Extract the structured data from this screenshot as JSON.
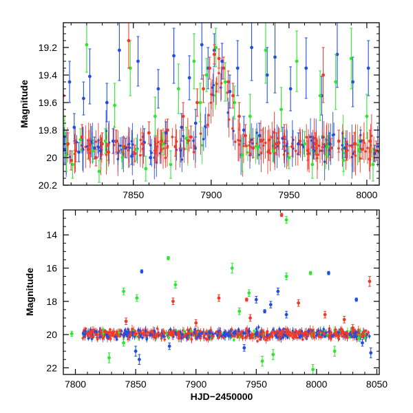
{
  "figure": {
    "background": "#ffffff"
  },
  "chart_data": [
    {
      "type": "scatter",
      "panel": "top",
      "title": "",
      "xlabel": "",
      "ylabel": "Magnitude",
      "xlim": [
        7805,
        8008
      ],
      "ylim": [
        20.2,
        19.02
      ],
      "y_inverted": true,
      "x_ticks": [
        7850,
        7900,
        7950,
        8000
      ],
      "x_tick_labels": [
        "7850",
        "7900",
        "7950",
        "8000"
      ],
      "y_ticks": [
        19.2,
        19.4,
        19.6,
        19.8,
        20,
        20.2
      ],
      "y_tick_labels": [
        "19.2",
        "19.4",
        "19.6",
        "19.8",
        "20",
        "20.2"
      ],
      "series_colors": [
        "#1f4fe0",
        "#2ee62e",
        "#f03a2a"
      ],
      "series": [
        {
          "color": "#1f4fe0",
          "points": [
            [
              7806,
              19.94,
              0.1
            ],
            [
              7809,
              19.45,
              0.15
            ],
            [
              7812,
              19.78,
              0.1
            ],
            [
              7815,
              19.96,
              0.07
            ],
            [
              7818,
              19.57,
              0.12
            ],
            [
              7822,
              19.41,
              0.2
            ],
            [
              7825,
              19.93,
              0.08
            ],
            [
              7829,
              19.95,
              0.06
            ],
            [
              7833,
              19.6,
              0.14
            ],
            [
              7837,
              19.88,
              0.09
            ],
            [
              7841,
              19.22,
              0.22
            ],
            [
              7845,
              19.93,
              0.07
            ],
            [
              7849,
              19.99,
              0.06
            ],
            [
              7853,
              19.3,
              0.18
            ],
            [
              7857,
              19.89,
              0.1
            ],
            [
              7861,
              20.0,
              0.05
            ],
            [
              7866,
              19.5,
              0.14
            ],
            [
              7871,
              19.82,
              0.08
            ],
            [
              7876,
              19.26,
              0.2
            ],
            [
              7881,
              19.78,
              0.1
            ],
            [
              7886,
              19.42,
              0.16
            ],
            [
              7890,
              19.75,
              0.1
            ],
            [
              7894,
              19.18,
              0.25
            ],
            [
              7898,
              19.35,
              0.15
            ],
            [
              7902,
              19.22,
              0.12
            ],
            [
              7907,
              19.3,
              0.13
            ],
            [
              7912,
              19.52,
              0.12
            ],
            [
              7917,
              19.35,
              0.2
            ],
            [
              7921,
              19.8,
              0.1
            ],
            [
              7926,
              19.2,
              0.24
            ],
            [
              7931,
              19.84,
              0.09
            ],
            [
              7936,
              19.4,
              0.2
            ],
            [
              7941,
              19.27,
              0.26
            ],
            [
              7946,
              19.86,
              0.08
            ],
            [
              7951,
              19.5,
              0.16
            ],
            [
              7956,
              19.9,
              0.08
            ],
            [
              7961,
              19.35,
              0.22
            ],
            [
              7966,
              19.95,
              0.06
            ],
            [
              7971,
              19.55,
              0.14
            ],
            [
              7976,
              19.9,
              0.08
            ],
            [
              7981,
              19.25,
              0.24
            ],
            [
              7986,
              19.93,
              0.07
            ],
            [
              7991,
              19.45,
              0.18
            ],
            [
              7996,
              19.88,
              0.08
            ],
            [
              8001,
              19.35,
              0.2
            ],
            [
              8005,
              19.97,
              0.06
            ]
          ]
        },
        {
          "color": "#2ee62e",
          "points": [
            [
              7807,
              19.98,
              0.12
            ],
            [
              7811,
              20.05,
              0.1
            ],
            [
              7816,
              19.87,
              0.08
            ],
            [
              7820,
              19.18,
              0.2
            ],
            [
              7824,
              19.95,
              0.08
            ],
            [
              7828,
              20.1,
              0.08
            ],
            [
              7832,
              19.88,
              0.09
            ],
            [
              7838,
              19.62,
              0.16
            ],
            [
              7843,
              20.0,
              0.08
            ],
            [
              7848,
              19.35,
              0.2
            ],
            [
              7852,
              19.94,
              0.08
            ],
            [
              7858,
              20.08,
              0.09
            ],
            [
              7864,
              19.7,
              0.14
            ],
            [
              7869,
              19.9,
              0.08
            ],
            [
              7874,
              20.05,
              0.1
            ],
            [
              7879,
              19.5,
              0.18
            ],
            [
              7884,
              19.86,
              0.08
            ],
            [
              7889,
              19.3,
              0.2
            ],
            [
              7893,
              19.6,
              0.14
            ],
            [
              7897,
              19.4,
              0.12
            ],
            [
              7903,
              19.2,
              0.14
            ],
            [
              7909,
              19.45,
              0.14
            ],
            [
              7915,
              19.6,
              0.12
            ],
            [
              7920,
              19.98,
              0.12
            ],
            [
              7925,
              19.7,
              0.16
            ],
            [
              7930,
              19.93,
              0.08
            ],
            [
              7935,
              19.22,
              0.24
            ],
            [
              7940,
              19.95,
              0.08
            ],
            [
              7945,
              19.65,
              0.16
            ],
            [
              7950,
              20.0,
              0.08
            ],
            [
              7955,
              19.3,
              0.22
            ],
            [
              7960,
              19.9,
              0.09
            ],
            [
              7965,
              20.05,
              0.1
            ],
            [
              7970,
              19.55,
              0.18
            ],
            [
              7975,
              19.92,
              0.08
            ],
            [
              7980,
              19.45,
              0.2
            ],
            [
              7985,
              20.02,
              0.08
            ],
            [
              7990,
              19.28,
              0.22
            ],
            [
              7995,
              19.95,
              0.08
            ],
            [
              8000,
              19.7,
              0.16
            ],
            [
              8004,
              20.05,
              0.12
            ]
          ]
        },
        {
          "color": "#f03a2a",
          "points": [
            [
              7805,
              19.55,
              0.18
            ],
            [
              7808,
              19.9,
              0.08
            ],
            [
              7810,
              20.02,
              0.07
            ],
            [
              7813,
              19.95,
              0.08
            ],
            [
              7817,
              19.85,
              0.09
            ],
            [
              7821,
              19.94,
              0.07
            ],
            [
              7826,
              20.0,
              0.06
            ],
            [
              7830,
              19.9,
              0.08
            ],
            [
              7834,
              19.96,
              0.06
            ],
            [
              7839,
              19.88,
              0.08
            ],
            [
              7844,
              19.92,
              0.07
            ],
            [
              7847,
              19.15,
              0.2
            ],
            [
              7851,
              19.97,
              0.06
            ],
            [
              7856,
              19.9,
              0.08
            ],
            [
              7860,
              19.82,
              0.08
            ],
            [
              7864,
              19.95,
              0.07
            ],
            [
              7868,
              19.88,
              0.08
            ],
            [
              7872,
              19.8,
              0.08
            ],
            [
              7877,
              19.92,
              0.07
            ],
            [
              7882,
              19.7,
              0.1
            ],
            [
              7887,
              19.85,
              0.08
            ],
            [
              7891,
              19.6,
              0.1
            ],
            [
              7895,
              19.5,
              0.1
            ],
            [
              7899,
              19.35,
              0.08
            ],
            [
              7902,
              19.25,
              0.07
            ],
            [
              7905,
              19.28,
              0.07
            ],
            [
              7908,
              19.35,
              0.08
            ],
            [
              7911,
              19.45,
              0.08
            ],
            [
              7914,
              19.55,
              0.09
            ],
            [
              7918,
              19.7,
              0.1
            ],
            [
              7922,
              19.84,
              0.08
            ],
            [
              7927,
              19.93,
              0.07
            ],
            [
              7932,
              19.88,
              0.08
            ],
            [
              7937,
              19.95,
              0.07
            ],
            [
              7942,
              19.9,
              0.08
            ],
            [
              7947,
              19.85,
              0.09
            ],
            [
              7952,
              19.92,
              0.07
            ],
            [
              7957,
              19.88,
              0.08
            ],
            [
              7962,
              19.95,
              0.07
            ],
            [
              7967,
              19.9,
              0.08
            ],
            [
              7972,
              19.4,
              0.2
            ],
            [
              7977,
              19.93,
              0.07
            ],
            [
              7982,
              19.88,
              0.08
            ],
            [
              7987,
              19.95,
              0.07
            ],
            [
              7992,
              19.9,
              0.08
            ],
            [
              7997,
              19.94,
              0.07
            ],
            [
              8002,
              19.88,
              0.08
            ],
            [
              8006,
              19.95,
              0.07
            ]
          ]
        }
      ]
    },
    {
      "type": "scatter",
      "panel": "bottom",
      "title": "",
      "xlabel": "HJD−2450000",
      "ylabel": "Magnitude",
      "xlim": [
        7790,
        8052
      ],
      "ylim": [
        22.4,
        12.5
      ],
      "y_inverted": true,
      "x_ticks": [
        7800,
        7850,
        7900,
        7950,
        8000,
        8050
      ],
      "x_tick_labels": [
        "7800",
        "7850",
        "7900",
        "7950",
        "8000",
        "8050"
      ],
      "y_ticks": [
        14,
        16,
        18,
        20,
        22
      ],
      "y_tick_labels": [
        "14",
        "16",
        "18",
        "20",
        "22"
      ],
      "series_colors": [
        "#1f4fe0",
        "#2ee62e",
        "#f03a2a"
      ],
      "series": [
        {
          "color": "#1f4fe0",
          "points": [
            [
              7855,
              16.2,
              0.1
            ],
            [
              7878,
              20.7,
              0.2
            ],
            [
              7950,
              17.9,
              0.2
            ],
            [
              7962,
              18.2,
              0.2
            ],
            [
              7968,
              17.4,
              0.2
            ],
            [
              8010,
              16.3,
              0.1
            ],
            [
              8033,
              17.9,
              0.1
            ],
            [
              7850,
              21.0,
              0.3
            ],
            [
              7853,
              21.5,
              0.3
            ],
            [
              7957,
              18.6,
              0.1
            ],
            [
              8038,
              20.5,
              0.2
            ],
            [
              8045,
              21.1,
              0.3
            ],
            [
              7940,
              20.8,
              0.2
            ],
            [
              7975,
              18.8,
              0.2
            ]
          ]
        },
        {
          "color": "#2ee62e",
          "points": [
            [
              7797,
              19.95,
              0.15
            ],
            [
              7851,
              17.8,
              0.2
            ],
            [
              7877,
              15.4,
              0.1
            ],
            [
              7883,
              17.0,
              0.2
            ],
            [
              7930,
              16.0,
              0.3
            ],
            [
              7944,
              17.5,
              0.2
            ],
            [
              7975,
              13.1,
              0.2
            ],
            [
              7975,
              16.5,
              0.2
            ],
            [
              7995,
              16.3,
              0.1
            ],
            [
              7936,
              18.6,
              0.2
            ],
            [
              7955,
              21.6,
              0.3
            ],
            [
              7828,
              21.4,
              0.3
            ],
            [
              7840,
              20.5,
              0.2
            ],
            [
              7997,
              22.1,
              0.3
            ],
            [
              8015,
              21.0,
              0.3
            ],
            [
              8035,
              20.2,
              0.2
            ],
            [
              7840,
              17.4,
              0.2
            ],
            [
              7964,
              21.2,
              0.3
            ]
          ]
        },
        {
          "color": "#f03a2a",
          "points": [
            [
              7971,
              12.8,
              0.1
            ],
            [
              7881,
              18.0,
              0.2
            ],
            [
              7919,
              17.8,
              0.2
            ],
            [
              7942,
              17.9,
              0.1
            ],
            [
              7985,
              18.1,
              0.2
            ],
            [
              8007,
              18.8,
              0.2
            ],
            [
              8023,
              19.1,
              0.2
            ],
            [
              8044,
              16.8,
              0.3
            ],
            [
              7945,
              19.0,
              0.2
            ],
            [
              7900,
              19.3,
              0.2
            ],
            [
              7842,
              19.2,
              0.2
            ],
            [
              8030,
              19.6,
              0.2
            ]
          ]
        }
      ]
    }
  ]
}
